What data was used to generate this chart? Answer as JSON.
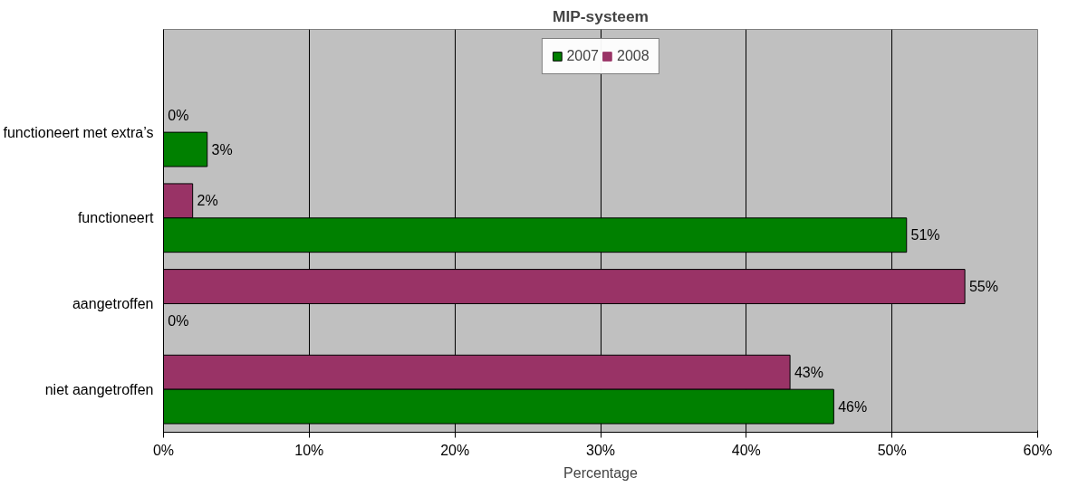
{
  "chart_data": {
    "type": "bar",
    "orientation": "horizontal",
    "title": "MIP-systeem",
    "xlabel": "Percentage",
    "categories": [
      "functioneert met extra’s",
      "functioneert",
      "aangetroffen",
      "niet aangetroffen"
    ],
    "series": [
      {
        "name": "2008",
        "color": "#993366",
        "values": [
          0,
          2,
          55,
          43
        ],
        "value_labels": [
          "0%",
          "2%",
          "55%",
          "43%"
        ]
      },
      {
        "name": "2007",
        "color": "#008000",
        "values": [
          3,
          51,
          0,
          46
        ],
        "value_labels": [
          "3%",
          "51%",
          "0%",
          "46%"
        ]
      }
    ],
    "xlim": [
      0,
      60
    ],
    "xticks": [
      {
        "value": 0,
        "label": "0%"
      },
      {
        "value": 10,
        "label": "10%"
      },
      {
        "value": 20,
        "label": "20%"
      },
      {
        "value": 30,
        "label": "30%"
      },
      {
        "value": 40,
        "label": "40%"
      },
      {
        "value": 50,
        "label": "50%"
      },
      {
        "value": 60,
        "label": "60%"
      }
    ],
    "grid": "x",
    "legend": "top"
  }
}
